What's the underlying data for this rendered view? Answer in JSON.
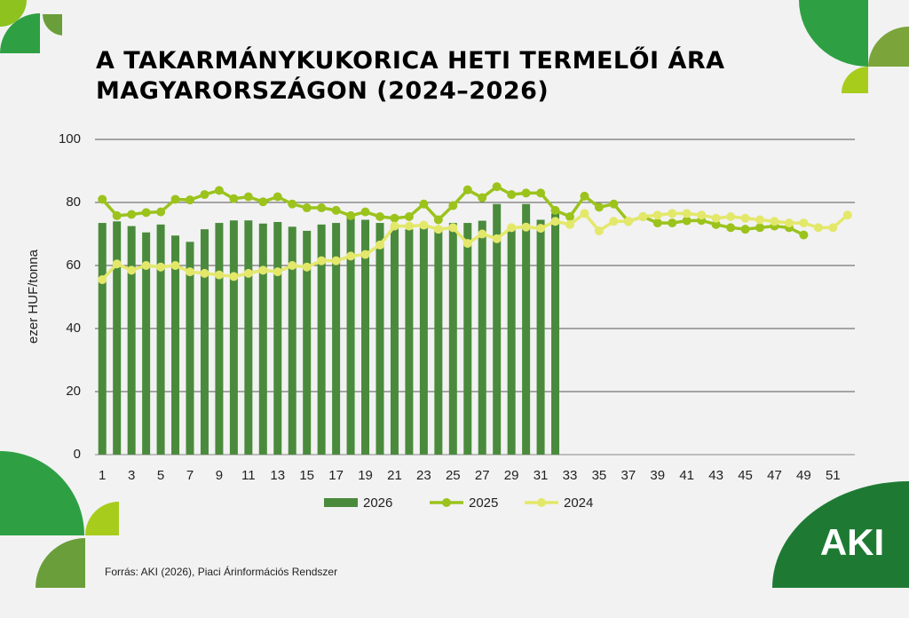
{
  "chart_data": {
    "type": "bar-line",
    "title": "A TAKARMÁNYKUKORICA HETI TERMELŐI ÁRA MAGYARORSZÁGON (2024–2026)",
    "y_label": "ezer HUF/tonna",
    "source": "Forrás: AKI (2026), Piaci Árinformációs Rendszer",
    "logo": "AKI",
    "categories": [
      1,
      null,
      3,
      null,
      5,
      null,
      7,
      null,
      9,
      null,
      11,
      null,
      13,
      null,
      15,
      null,
      17,
      null,
      19,
      null,
      21,
      null,
      23,
      null,
      25,
      null,
      27,
      null,
      29,
      null,
      31,
      null,
      33,
      null,
      35,
      null,
      37,
      null,
      39,
      null,
      41,
      null,
      43,
      null,
      45,
      null,
      47,
      null,
      49,
      null,
      51,
      null
    ],
    "ylim": [
      0,
      100
    ],
    "yticks": [
      0,
      20,
      40,
      60,
      80,
      100
    ],
    "grid": true,
    "legend": "bottom",
    "series": [
      {
        "name": "2026",
        "type": "bar",
        "color": "#4a8a3c",
        "values": [
          73.5,
          74,
          72.5,
          70.5,
          73,
          69.5,
          67.5,
          71.5,
          73.5,
          74.3,
          74.3,
          73.3,
          73.8,
          72.3,
          71,
          73,
          73.5,
          75.5,
          74.5,
          73.5,
          72,
          71.5,
          72,
          71,
          73.5,
          73.5,
          74.2,
          79.5,
          72,
          79.5,
          74.5,
          76.5,
          null,
          null,
          null,
          null,
          null,
          null,
          null,
          null,
          null,
          null,
          null,
          null,
          null,
          null,
          null,
          null,
          null,
          null,
          null,
          null
        ]
      },
      {
        "name": "2025",
        "type": "line",
        "color": "#9bc31c",
        "values": [
          81,
          75.8,
          76.2,
          76.8,
          77,
          81,
          80.8,
          82.5,
          83.8,
          81.2,
          81.8,
          80.2,
          81.8,
          79.5,
          78.3,
          78.3,
          77.5,
          75.8,
          77,
          75.5,
          75,
          75.5,
          79.5,
          74.5,
          79,
          84,
          81.5,
          85,
          82.5,
          83,
          83,
          77.5,
          75.5,
          82,
          78.5,
          79.5,
          74,
          75.5,
          73.5,
          73.5,
          74.2,
          74.3,
          73,
          72,
          71.5,
          72,
          72.5,
          72,
          69.7,
          null,
          null,
          null
        ]
      },
      {
        "name": "2024",
        "type": "line",
        "color": "#e3e86a",
        "values": [
          55.5,
          60.5,
          58.5,
          60,
          59.5,
          60,
          58,
          57.5,
          57,
          56.5,
          57.5,
          58.5,
          58,
          60,
          59.5,
          61.5,
          61.5,
          63,
          63.5,
          66.5,
          72.5,
          72.5,
          72.8,
          71.5,
          72,
          67,
          70,
          68.5,
          72,
          72.2,
          71.8,
          74,
          73,
          76.5,
          71,
          74,
          74,
          75.5,
          76,
          76.5,
          76.5,
          76,
          75,
          75.5,
          75,
          74.5,
          74,
          73.5,
          73.5,
          72,
          72,
          76
        ]
      }
    ]
  }
}
